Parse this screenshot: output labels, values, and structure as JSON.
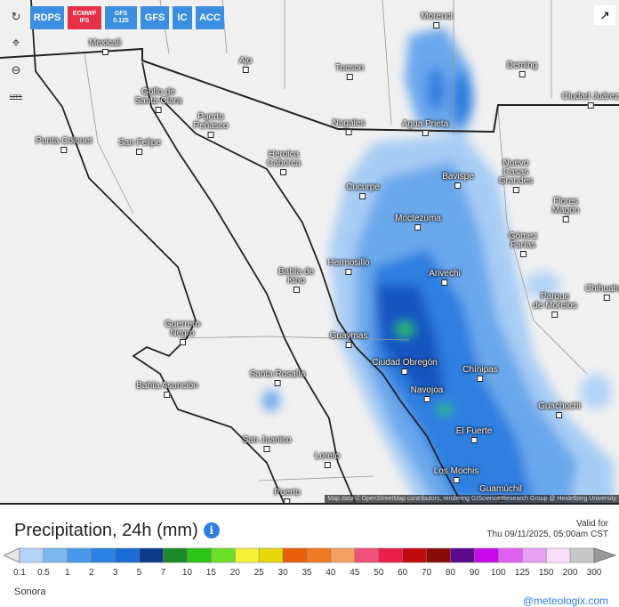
{
  "models": [
    {
      "label": "RDPS",
      "active": false
    },
    {
      "label": "ECMWF IFS",
      "active": true
    },
    {
      "label": "GFS 0.125",
      "active": false
    },
    {
      "label": "GFS",
      "active": false
    },
    {
      "label": "IC",
      "active": false
    },
    {
      "label": "ACC",
      "active": false
    }
  ],
  "tools": {
    "refresh": "refresh-icon",
    "locate": "map-pin-icon",
    "zoom": "zoom-out-icon",
    "city": "CITY"
  },
  "map": {
    "attribution": "Map data © OpenStreetMap contributors, rendering GIScience Research Group @ Heidelberg University",
    "cities": [
      "Mexicali",
      "Morenci",
      "Ajo",
      "Tucson",
      "Deming",
      "Ciudad Juárez",
      "Golfo de\nSanta Clara",
      "Puerto\nPeñasco",
      "Nogales",
      "Agua Prieta",
      "Punta Colonet",
      "San Felipe",
      "Heroica\nCaborca",
      "Cucurpe",
      "Bavispe",
      "Nuevo\nCasas\nGrandes",
      "Flores\nMagón",
      "Moctezuma",
      "Gómez\nFarías",
      "Hermosillo",
      "Bahía de\nKino",
      "Arivechi",
      "Parque\nde Morelos",
      "Chihuahua",
      "Guerrero\nNegro",
      "Guaymas",
      "Ciudad Obregón",
      "Santa Rosalía",
      "Chínipas",
      "Bahía Asunción",
      "Navojoa",
      "Guachochi",
      "El Fuerte",
      "San Juanico",
      "Loreto",
      "Los Mochis",
      "Guamúchil",
      "Puerto"
    ]
  },
  "legend": {
    "title": "Precipitation, 24h (mm)",
    "valid_label": "Valid for",
    "valid_time": "Thu 09/11/2025, 05:00am CST",
    "ticks": [
      "0.1",
      "0.5",
      "1",
      "2",
      "3",
      "5",
      "7",
      "10",
      "15",
      "20",
      "25",
      "30",
      "35",
      "40",
      "45",
      "50",
      "60",
      "70",
      "80",
      "90",
      "100",
      "125",
      "150",
      "200",
      "300"
    ],
    "colors": [
      "#b3d4f7",
      "#7db8f0",
      "#4a98ea",
      "#2a82e6",
      "#1a6cd6",
      "#0c3a8a",
      "#1c8a2a",
      "#2ec41a",
      "#6ce02a",
      "#f6f23a",
      "#e6d80a",
      "#e8600a",
      "#f07a20",
      "#f4a060",
      "#f0507a",
      "#e8204a",
      "#c00a10",
      "#8a0a0a",
      "#5a0a8a",
      "#c80ae8",
      "#e060f0",
      "#e8a0f4",
      "#f8e0fa",
      "#c8c8c8"
    ],
    "under_color": "#e6e6e6",
    "over_color": "#999999"
  },
  "region": "Sonora",
  "brand": "@meteologix.com"
}
